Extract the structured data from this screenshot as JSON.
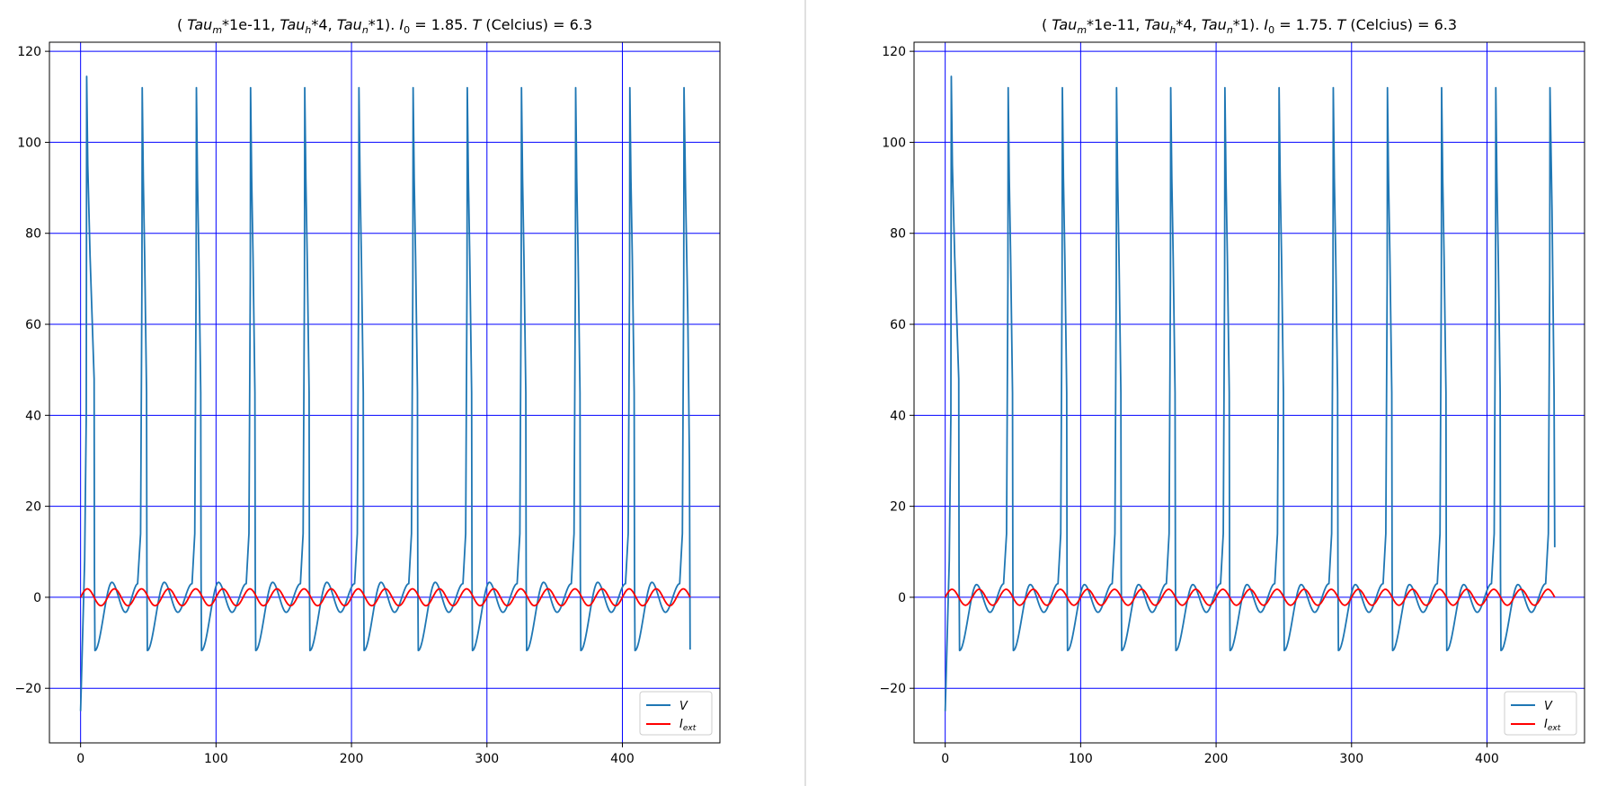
{
  "colors": {
    "voltage": "#1f77b4",
    "current": "#ff0000",
    "grid": "#0000ff",
    "divider": "#c0c0c0"
  },
  "chart_data": [
    {
      "type": "line",
      "title": "( Tau_m*1e-11, Tau_h*4, Tau_n*1). I_0 = 1.85. T (Celcius) = 6.3",
      "title_parts": {
        "open": "( ",
        "tau_m_base": "Tau",
        "tau_m_sub": "m",
        "tau_m_mult": "*1e-11, ",
        "tau_h_base": "Tau",
        "tau_h_sub": "h",
        "tau_h_mult": "*4, ",
        "tau_n_base": "Tau",
        "tau_n_sub": "n",
        "tau_n_mult": "*1). ",
        "i_base": "I",
        "i_sub": "0",
        "i_value": " = 1.85. ",
        "t_symbol": "T",
        "t_rest": " (Celcius) = 6.3"
      },
      "xlim": [
        -23,
        472
      ],
      "ylim": [
        -32,
        122
      ],
      "xticks": [
        0,
        100,
        200,
        300,
        400
      ],
      "yticks": [
        -20,
        0,
        20,
        40,
        60,
        80,
        100,
        120
      ],
      "grid": true,
      "legend_position": "lower-right",
      "legend": [
        {
          "key": "V",
          "base": "V",
          "sub": ""
        },
        {
          "key": "I",
          "base": "I",
          "sub": "ext"
        }
      ],
      "current": {
        "amplitude": 1.85,
        "period": 20,
        "t_end": 450
      },
      "voltage": {
        "v0": -25,
        "t_end": 450,
        "v_end": -11.5,
        "first_spike": {
          "t": 4.5,
          "peak": 114.5,
          "end_t": 10,
          "end_v": 48
        },
        "spike_peak": 112,
        "spike_times": [
          45.5,
          85.5,
          125.5,
          165.5,
          205.5,
          245.5,
          285.5,
          325.5,
          365.5,
          405.5,
          445.5
        ],
        "trough": -11.7,
        "sub_peak": 3.3,
        "sub_valley": -3.3
      }
    },
    {
      "type": "line",
      "title": "( Tau_m*1e-11, Tau_h*4, Tau_n*1). I_0 = 1.75. T (Celcius) = 6.3",
      "title_parts": {
        "open": "( ",
        "tau_m_base": "Tau",
        "tau_m_sub": "m",
        "tau_m_mult": "*1e-11, ",
        "tau_h_base": "Tau",
        "tau_h_sub": "h",
        "tau_h_mult": "*4, ",
        "tau_n_base": "Tau",
        "tau_n_sub": "n",
        "tau_n_mult": "*1). ",
        "i_base": "I",
        "i_sub": "0",
        "i_value": " = 1.75. ",
        "t_symbol": "T",
        "t_rest": " (Celcius) = 6.3"
      },
      "xlim": [
        -23,
        472
      ],
      "ylim": [
        -32,
        122
      ],
      "xticks": [
        0,
        100,
        200,
        300,
        400
      ],
      "yticks": [
        -20,
        0,
        20,
        40,
        60,
        80,
        100,
        120
      ],
      "grid": true,
      "legend_position": "lower-right",
      "legend": [
        {
          "key": "V",
          "base": "V",
          "sub": ""
        },
        {
          "key": "I",
          "base": "I",
          "sub": "ext"
        }
      ],
      "current": {
        "amplitude": 1.75,
        "period": 20,
        "t_end": 450
      },
      "voltage": {
        "v0": -25,
        "t_end": 450,
        "v_end": 11,
        "first_spike": {
          "t": 4.5,
          "peak": 114.5,
          "end_t": 10,
          "end_v": 48
        },
        "spike_peak": 112,
        "spike_times": [
          46.5,
          86.5,
          126.5,
          166.5,
          206.5,
          246.5,
          286.5,
          326.5,
          366.5,
          406.5,
          446.5
        ],
        "trough": -11.7,
        "sub_peak": 2.8,
        "sub_valley": -3.3
      }
    }
  ]
}
